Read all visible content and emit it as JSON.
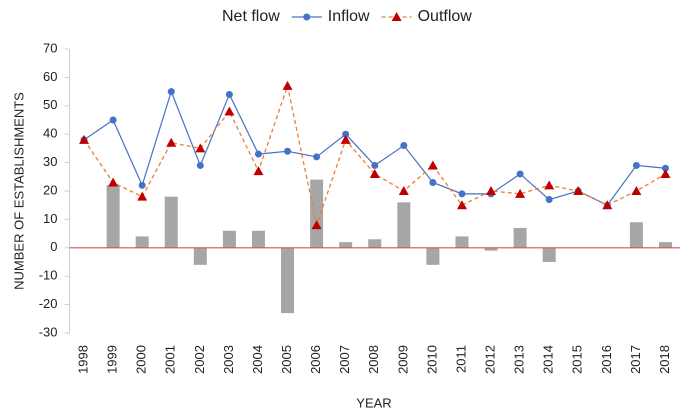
{
  "chart_data": {
    "type": "combo",
    "categories": [
      "1998",
      "1999",
      "2000",
      "2001",
      "2002",
      "2003",
      "2004",
      "2005",
      "2006",
      "2007",
      "2008",
      "2009",
      "2010",
      "2011",
      "2012",
      "2013",
      "2014",
      "2015",
      "2016",
      "2017",
      "2018"
    ],
    "series": [
      {
        "name": "Net flow",
        "type": "bar",
        "color": "#a6a6a6",
        "values": [
          0,
          22,
          4,
          18,
          -6,
          6,
          6,
          -23,
          24,
          2,
          3,
          16,
          -6,
          4,
          -1,
          7,
          -5,
          0,
          0,
          9,
          2
        ]
      },
      {
        "name": "Inflow",
        "type": "line",
        "color": "#4472c4",
        "values": [
          38,
          45,
          22,
          55,
          29,
          54,
          33,
          34,
          32,
          40,
          29,
          36,
          23,
          19,
          19,
          26,
          17,
          20,
          15,
          29,
          28
        ]
      },
      {
        "name": "Outflow",
        "type": "line",
        "dashed": true,
        "color": "#ed7d31",
        "marker_color": "#c00000",
        "values": [
          38,
          23,
          18,
          37,
          35,
          48,
          27,
          57,
          8,
          38,
          26,
          20,
          29,
          15,
          20,
          19,
          22,
          20,
          15,
          20,
          26
        ]
      }
    ],
    "x_label": "YEAR",
    "y_label": "NUMBER OF ESTABLISHMENTS",
    "ylim": [
      -30,
      70
    ],
    "yticks": [
      -30,
      -20,
      -10,
      0,
      10,
      20,
      30,
      40,
      50,
      60,
      70
    ],
    "zero_line_color": "#e05050",
    "legend": "top"
  }
}
